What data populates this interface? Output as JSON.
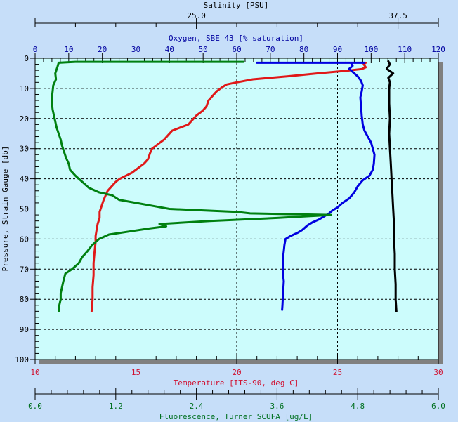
{
  "chart_data": {
    "type": "line",
    "title": "",
    "orientation": "vertical-profile",
    "y_axis": {
      "label": "Pressure, Strain Gauge [db]",
      "range": [
        0,
        100
      ],
      "inverted": true,
      "ticks": [
        0,
        10,
        20,
        30,
        40,
        50,
        60,
        70,
        80,
        90,
        100
      ]
    },
    "x_axes": [
      {
        "id": "salinity",
        "label": "Salinity [PSU]",
        "position": "top-outer",
        "range": [
          15.0,
          40.0
        ],
        "tick_labels": [
          "25.0",
          "37.5"
        ],
        "color": "#000000"
      },
      {
        "id": "oxygen",
        "label": "Oxygen, SBE 43 [% saturation]",
        "position": "top-inner",
        "range": [
          0,
          120
        ],
        "tick_labels": [
          "0",
          "10",
          "20",
          "30",
          "40",
          "50",
          "60",
          "70",
          "80",
          "90",
          "100",
          "110",
          "120"
        ],
        "color": "#0000a0"
      },
      {
        "id": "temperature",
        "label": "Temperature [ITS-90, deg C]",
        "position": "bottom-inner",
        "range": [
          10,
          30
        ],
        "tick_labels": [
          "10",
          "15",
          "20",
          "25",
          "30"
        ],
        "color": "#d01030"
      },
      {
        "id": "fluorescence",
        "label": "Fluorescence, Turner SCUFA [ug/L]",
        "position": "bottom-outer",
        "range": [
          0.0,
          6.0
        ],
        "tick_labels": [
          "0.0",
          "1.2",
          "2.4",
          "3.6",
          "4.8",
          "6.0"
        ],
        "color": "#007020"
      }
    ],
    "grid": true,
    "series": [
      {
        "name": "Temperature",
        "axis": "temperature",
        "color": "#e01818",
        "points": [
          [
            26.4,
            1.5
          ],
          [
            26.3,
            2
          ],
          [
            26.4,
            3
          ],
          [
            26.2,
            3.6
          ],
          [
            25.5,
            4.1
          ],
          [
            24.0,
            5
          ],
          [
            22.5,
            6
          ],
          [
            20.8,
            7
          ],
          [
            20.0,
            8
          ],
          [
            19.5,
            8.7
          ],
          [
            19.3,
            9.5
          ],
          [
            19.0,
            11
          ],
          [
            18.8,
            12.5
          ],
          [
            18.6,
            14
          ],
          [
            18.5,
            16
          ],
          [
            18.3,
            17.5
          ],
          [
            18.0,
            19
          ],
          [
            17.8,
            20.5
          ],
          [
            17.6,
            22
          ],
          [
            17.2,
            23
          ],
          [
            16.8,
            24
          ],
          [
            16.6,
            25.5
          ],
          [
            16.4,
            27
          ],
          [
            16.2,
            28
          ],
          [
            16.0,
            29
          ],
          [
            15.8,
            30
          ],
          [
            15.7,
            31.5
          ],
          [
            15.6,
            33.5
          ],
          [
            15.4,
            35
          ],
          [
            15.1,
            36.5
          ],
          [
            14.8,
            38
          ],
          [
            14.5,
            39
          ],
          [
            14.2,
            40
          ],
          [
            14.0,
            41
          ],
          [
            13.8,
            42.5
          ],
          [
            13.6,
            44
          ],
          [
            13.5,
            45.5
          ],
          [
            13.4,
            47
          ],
          [
            13.3,
            49
          ],
          [
            13.2,
            51
          ],
          [
            13.2,
            53
          ],
          [
            13.1,
            55
          ],
          [
            13.05,
            57
          ],
          [
            13.0,
            59
          ],
          [
            13.0,
            61
          ],
          [
            12.95,
            64
          ],
          [
            12.9,
            68
          ],
          [
            12.9,
            72
          ],
          [
            12.85,
            76
          ],
          [
            12.85,
            80
          ],
          [
            12.8,
            84
          ]
        ]
      },
      {
        "name": "Oxygen",
        "axis": "oxygen",
        "color": "#0000e0",
        "points": [
          [
            66,
            1.5
          ],
          [
            98,
            1.5
          ],
          [
            94,
            1.5
          ],
          [
            94.5,
            2.5
          ],
          [
            93.5,
            3.5
          ],
          [
            95,
            5
          ],
          [
            96,
            6
          ],
          [
            97,
            7.5
          ],
          [
            97.5,
            9
          ],
          [
            97.2,
            11
          ],
          [
            96.8,
            13
          ],
          [
            97,
            16
          ],
          [
            97.2,
            19
          ],
          [
            97.5,
            22
          ],
          [
            98,
            24
          ],
          [
            99,
            26
          ],
          [
            100,
            28
          ],
          [
            100.5,
            30
          ],
          [
            101,
            32
          ],
          [
            100.8,
            35
          ],
          [
            100.5,
            37
          ],
          [
            99.5,
            39
          ],
          [
            97.5,
            40.5
          ],
          [
            96,
            42.5
          ],
          [
            95,
            44.5
          ],
          [
            93.5,
            46.5
          ],
          [
            91.5,
            48
          ],
          [
            90,
            49.5
          ],
          [
            88.5,
            50.5
          ],
          [
            87.5,
            51.5
          ],
          [
            86,
            52.5
          ],
          [
            84.5,
            53.5
          ],
          [
            82.5,
            54.5
          ],
          [
            81,
            55.5
          ],
          [
            79.5,
            57
          ],
          [
            78,
            58
          ],
          [
            76,
            59
          ],
          [
            74.5,
            60
          ],
          [
            74.2,
            62
          ],
          [
            74,
            64
          ],
          [
            73.8,
            66
          ],
          [
            73.7,
            68
          ],
          [
            73.8,
            70
          ],
          [
            73.8,
            72
          ],
          [
            74,
            74
          ],
          [
            73.9,
            76
          ],
          [
            73.8,
            78
          ],
          [
            73.7,
            80
          ],
          [
            73.6,
            82
          ],
          [
            73.5,
            83.5
          ]
        ]
      },
      {
        "name": "Fluorescence",
        "axis": "fluorescence",
        "color": "#008010",
        "points": [
          [
            3.1,
            1.2
          ],
          [
            1.8,
            1.2
          ],
          [
            0.6,
            1.2
          ],
          [
            0.35,
            1.5
          ],
          [
            0.33,
            3
          ],
          [
            0.3,
            5
          ],
          [
            0.31,
            7
          ],
          [
            0.27,
            9
          ],
          [
            0.26,
            11
          ],
          [
            0.25,
            13
          ],
          [
            0.25,
            15
          ],
          [
            0.26,
            17
          ],
          [
            0.28,
            19
          ],
          [
            0.3,
            21
          ],
          [
            0.32,
            23
          ],
          [
            0.35,
            25
          ],
          [
            0.38,
            27
          ],
          [
            0.4,
            29
          ],
          [
            0.43,
            31
          ],
          [
            0.46,
            33
          ],
          [
            0.5,
            35
          ],
          [
            0.52,
            37
          ],
          [
            0.6,
            39
          ],
          [
            0.7,
            41
          ],
          [
            0.8,
            43
          ],
          [
            0.95,
            44.5
          ],
          [
            1.15,
            45.5
          ],
          [
            1.25,
            47
          ],
          [
            1.5,
            48
          ],
          [
            1.75,
            49
          ],
          [
            2.0,
            50
          ],
          [
            2.5,
            50.5
          ],
          [
            3.0,
            51
          ],
          [
            3.2,
            51.5
          ],
          [
            4.4,
            52
          ],
          [
            3.6,
            53
          ],
          [
            2.6,
            54
          ],
          [
            1.85,
            55
          ],
          [
            1.95,
            55.8
          ],
          [
            1.7,
            56.5
          ],
          [
            1.4,
            57.5
          ],
          [
            1.1,
            58.5
          ],
          [
            0.95,
            60
          ],
          [
            0.85,
            62
          ],
          [
            0.78,
            64
          ],
          [
            0.7,
            66
          ],
          [
            0.65,
            68
          ],
          [
            0.55,
            70
          ],
          [
            0.45,
            71.5
          ],
          [
            0.42,
            74
          ],
          [
            0.4,
            76
          ],
          [
            0.38,
            78
          ],
          [
            0.38,
            80
          ],
          [
            0.36,
            82
          ],
          [
            0.35,
            84
          ]
        ]
      },
      {
        "name": "Salinity",
        "axis": "salinity",
        "color": "#000000",
        "points": [
          [
            36.9,
            1
          ],
          [
            37.0,
            2
          ],
          [
            36.8,
            3.5
          ],
          [
            37.2,
            5
          ],
          [
            36.9,
            6.5
          ],
          [
            37.0,
            8
          ],
          [
            36.95,
            10
          ],
          [
            36.95,
            15
          ],
          [
            37.0,
            20
          ],
          [
            36.95,
            25
          ],
          [
            37.0,
            30
          ],
          [
            37.05,
            35
          ],
          [
            37.1,
            40
          ],
          [
            37.15,
            45
          ],
          [
            37.2,
            50
          ],
          [
            37.25,
            55
          ],
          [
            37.25,
            60
          ],
          [
            37.3,
            65
          ],
          [
            37.3,
            70
          ],
          [
            37.35,
            75
          ],
          [
            37.35,
            80
          ],
          [
            37.4,
            84
          ]
        ]
      }
    ]
  },
  "labels": {
    "salinity_title": "Salinity [PSU]",
    "oxygen_title": "Oxygen, SBE 43 [% saturation]",
    "temperature_title": "Temperature [ITS-90, deg C]",
    "fluorescence_title": "Fluorescence, Turner SCUFA [ug/L]",
    "pressure_title": "Pressure, Strain Gauge [db]"
  },
  "colors": {
    "page_bg": "#c6def9",
    "plot_bg": "#ccfcfc",
    "shadow": "#808080",
    "grid": "#000000"
  }
}
